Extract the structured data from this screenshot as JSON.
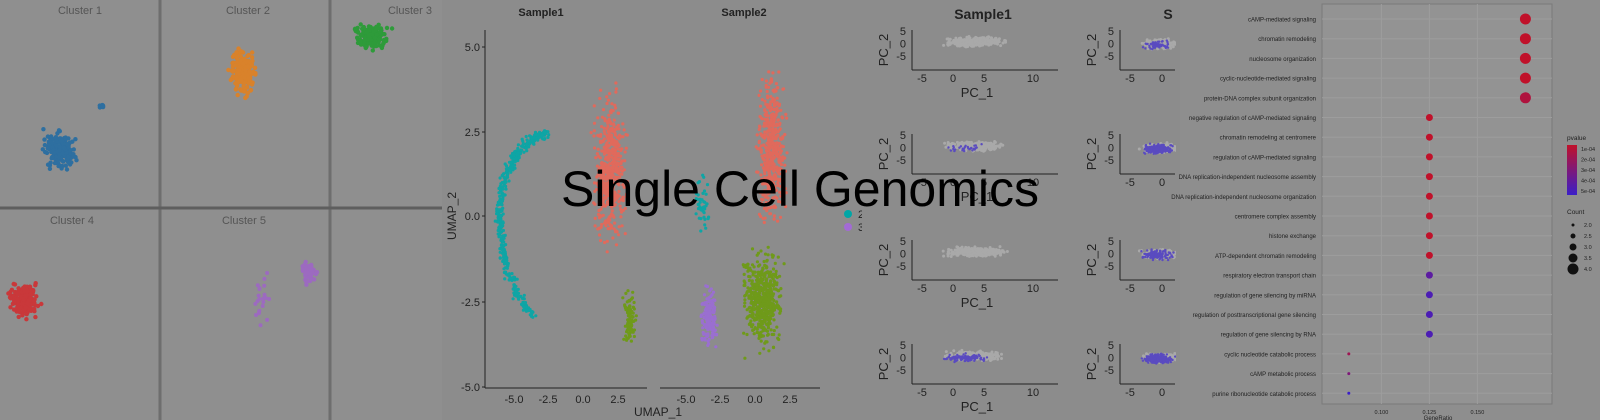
{
  "banner": {
    "title": "Single Cell Genomics"
  },
  "cluster_panel": {
    "clusters": [
      {
        "label": "Cluster 1",
        "color": "#2e6fa0"
      },
      {
        "label": "Cluster 2",
        "color": "#d9822b"
      },
      {
        "label": "Cluster 3",
        "color": "#2e9b3a"
      },
      {
        "label": "Cluster 4",
        "color": "#c9383a"
      },
      {
        "label": "Cluster 5",
        "color": "#9c6ac0"
      }
    ]
  },
  "umap_panel": {
    "facets": [
      "Sample1",
      "Sample2"
    ],
    "xlabel": "UMAP_1",
    "ylabel": "UMAP_2",
    "yticks": [
      "5.0",
      "2.5",
      "0.0",
      "-2.5",
      "-5.0"
    ],
    "xticks": [
      "-5.0",
      "-2.5",
      "0.0",
      "2.5"
    ],
    "legend": [
      {
        "label": "2",
        "color": "#00a6a6"
      },
      {
        "label": "3",
        "color": "#a36ad6"
      }
    ],
    "colors": {
      "c1": "#e06a5c",
      "c2": "#6f9a1a",
      "c3": "#0fa5a5",
      "c4": "#9a6fd0"
    }
  },
  "pca_panel": {
    "title_left": "Sample1",
    "title_right": "S",
    "xlabel": "PC_1",
    "ylabel": "PC_2",
    "xticks": [
      "-5",
      "0",
      "5",
      "10"
    ],
    "yticks": [
      "5",
      "0",
      "-5"
    ],
    "colors": {
      "grey": "#a9a9a9",
      "blue": "#5a4bc0"
    }
  },
  "dotplot": {
    "terms": [
      "cAMP-mediated signaling",
      "chromatin remodeling",
      "nucleosome organization",
      "cyclic-nucleotide-mediated signaling",
      "protein-DNA complex subunit organization",
      "negative regulation of cAMP-mediated signaling",
      "chromatin remodeling at centromere",
      "regulation of cAMP-mediated signaling",
      "DNA replication-independent nucleosome assembly",
      "DNA replication-independent nucleosome organization",
      "centromere complex assembly",
      "histone exchange",
      "ATP-dependent chromatin remodeling",
      "respiratory electron transport chain",
      "regulation of gene silencing by miRNA",
      "regulation of posttranscriptional gene silencing",
      "regulation of gene silencing by RNA",
      "cyclic nucleotide catabolic process",
      "cAMP metabolic process",
      "purine ribonucleotide catabolic process"
    ],
    "gene_ratio": [
      0.175,
      0.175,
      0.175,
      0.175,
      0.175,
      0.125,
      0.125,
      0.125,
      0.125,
      0.125,
      0.125,
      0.125,
      0.125,
      0.125,
      0.125,
      0.125,
      0.125,
      0.083,
      0.083,
      0.083
    ],
    "count": [
      4,
      4,
      4,
      4,
      4,
      3,
      3,
      3,
      3,
      3,
      3,
      3,
      3,
      3,
      3,
      3,
      3,
      2,
      2,
      2
    ],
    "pvalue": [
      1e-05,
      1e-05,
      1e-05,
      1e-05,
      1.5e-05,
      1e-05,
      1e-05,
      1e-05,
      1e-05,
      1e-05,
      1e-05,
      1e-05,
      1e-05,
      4e-05,
      4.5e-05,
      4.5e-05,
      4.5e-05,
      2e-05,
      3e-05,
      5e-05
    ],
    "xticks": [
      "0.100",
      "0.125",
      "0.150"
    ],
    "xlabel": "GeneRatio",
    "legend_pvalue_title": "pvalue",
    "legend_pvalue_labels": [
      "1e-04",
      "2e-04",
      "3e-04",
      "4e-04",
      "5e-04"
    ],
    "legend_count_title": "Count",
    "legend_count_labels": [
      "2.0",
      "2.5",
      "3.0",
      "3.5",
      "4.0"
    ],
    "colors": {
      "high": "#c0112a",
      "low": "#3b1fc8"
    }
  }
}
